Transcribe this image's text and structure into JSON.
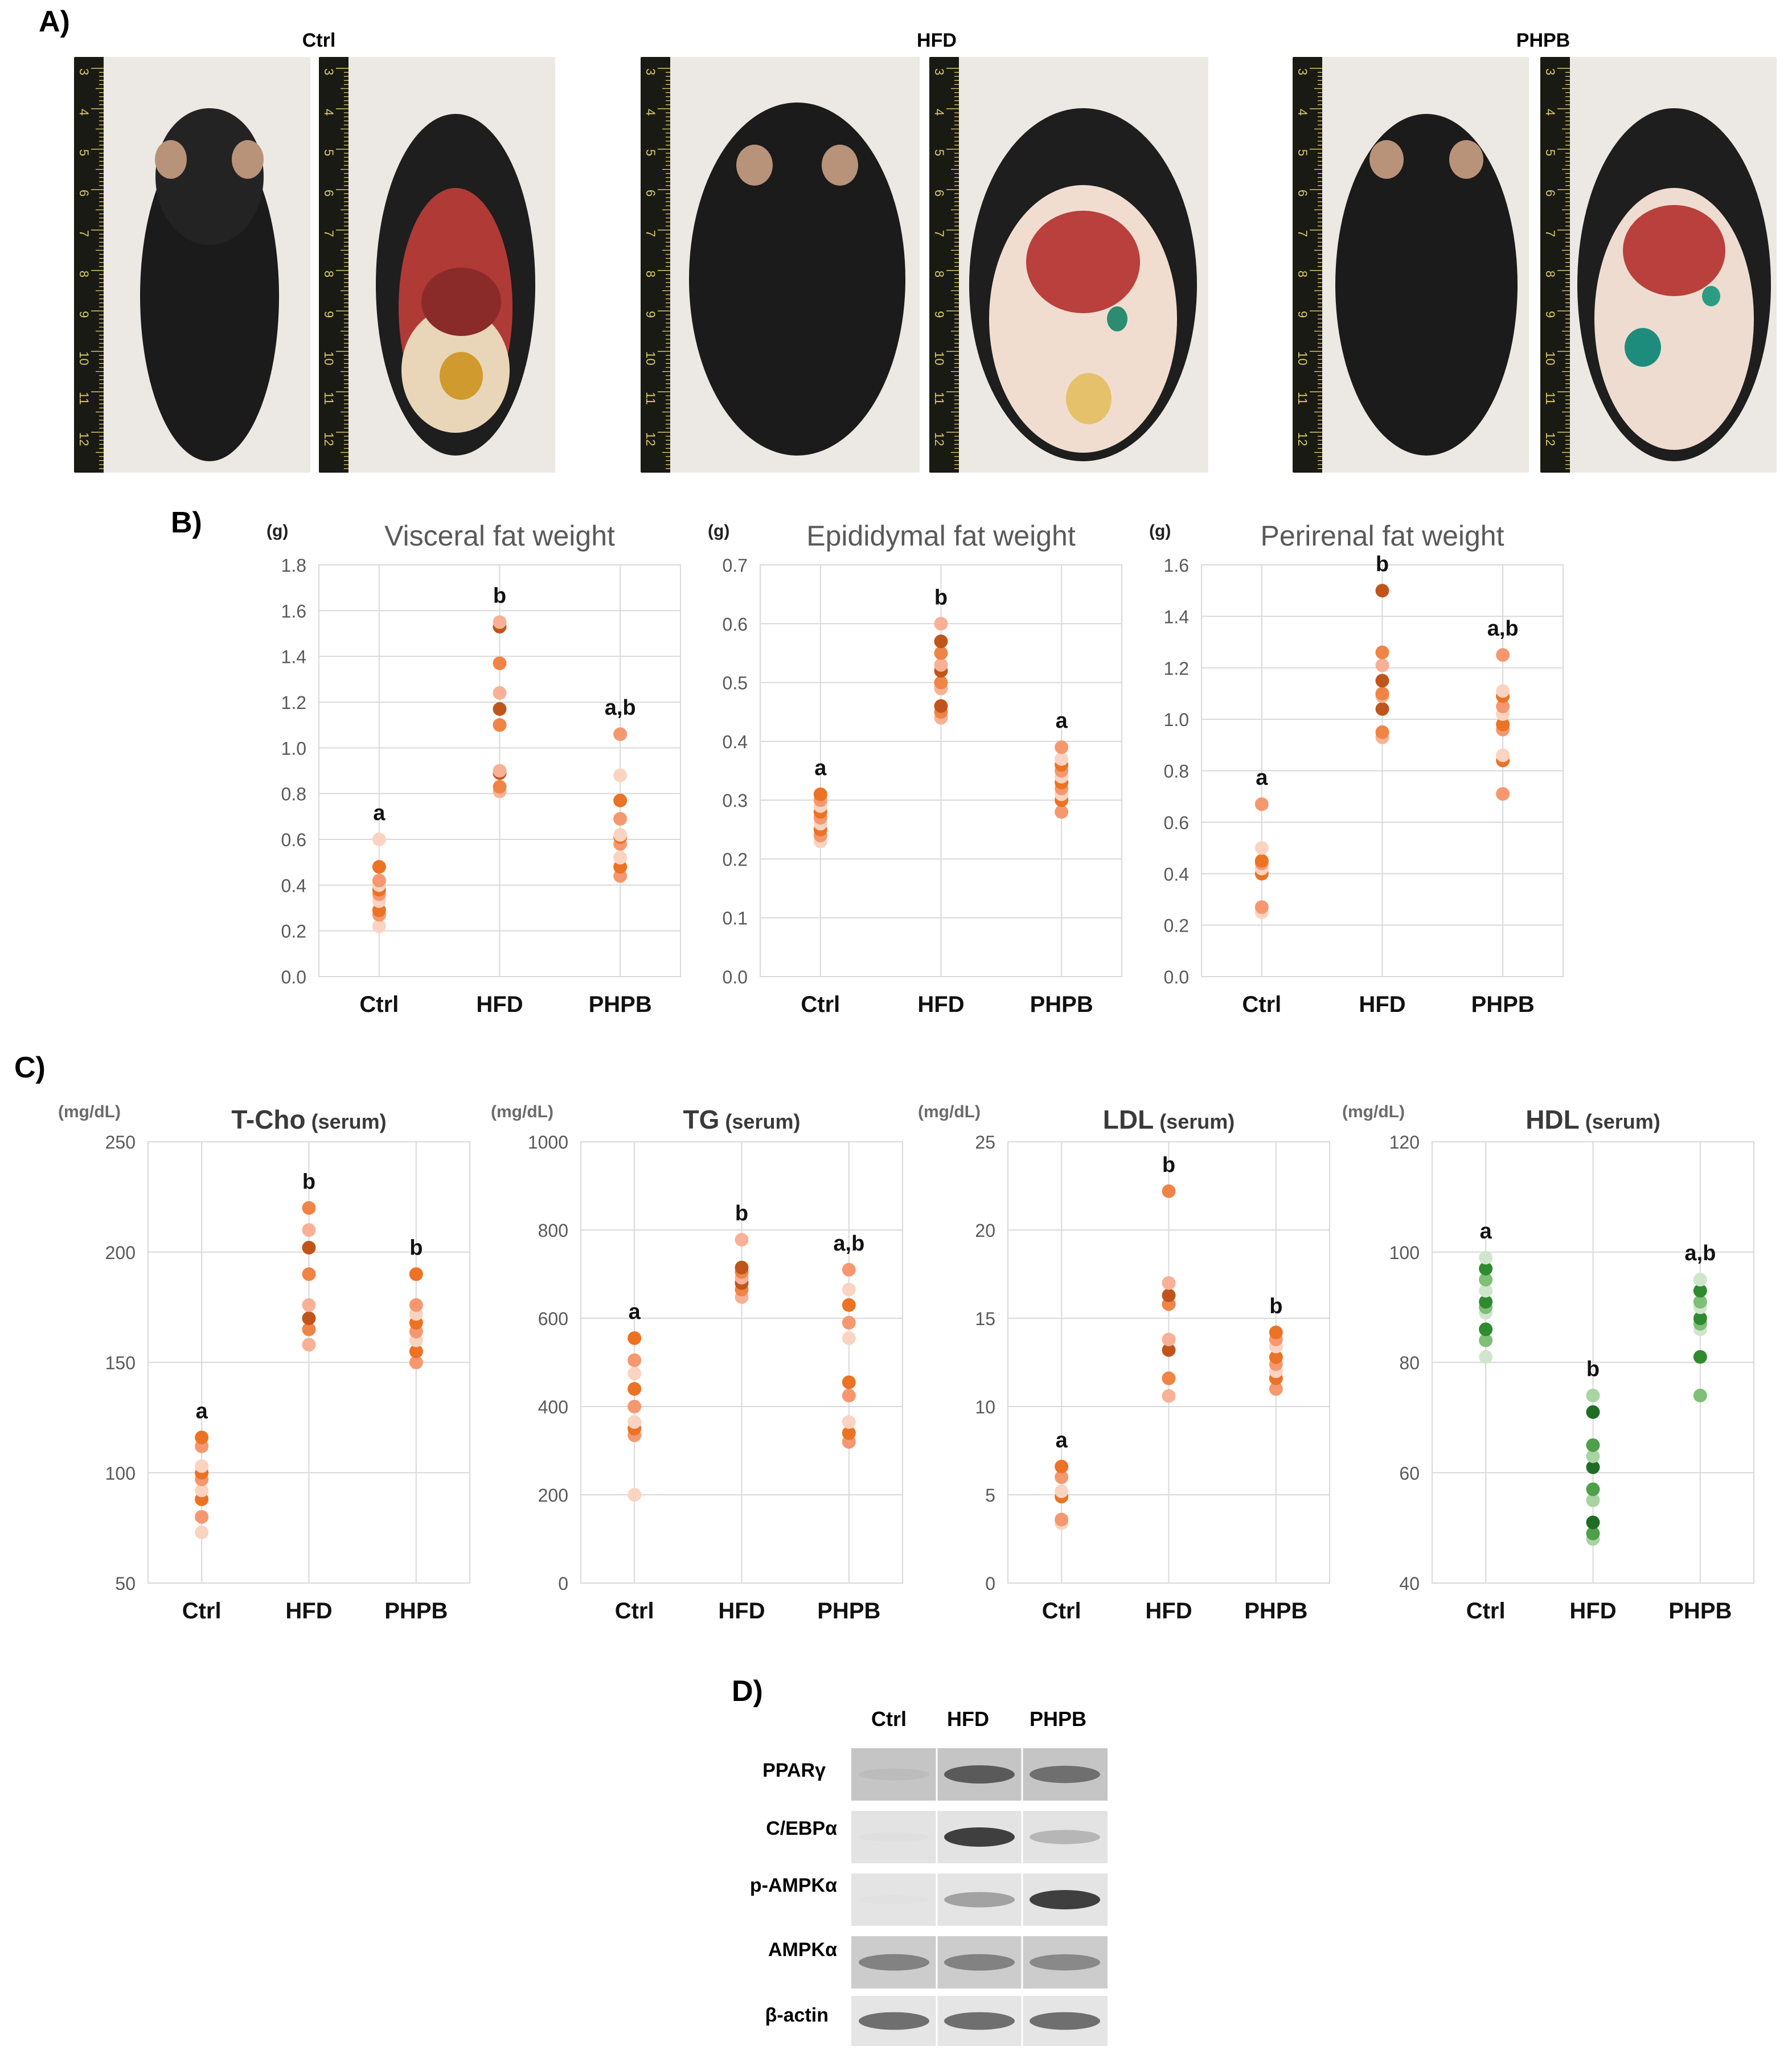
{
  "panelA": {
    "label": "A)",
    "groups": [
      {
        "title": "Ctrl"
      },
      {
        "title": "HFD"
      },
      {
        "title": "PHPB"
      }
    ],
    "ruler_numbers": [
      "3",
      "4",
      "5",
      "6",
      "7",
      "8",
      "9",
      "10",
      "11",
      "12"
    ]
  },
  "panelB": {
    "label": "B)",
    "categories": [
      "Ctrl",
      "HFD",
      "PHPB"
    ],
    "charts": [
      {
        "title": "Visceral fat weight",
        "unit": "(g)",
        "ylim": [
          0,
          1.8
        ],
        "step": 0.2,
        "decimals": 1,
        "letters": [
          "a",
          "b",
          "a,b"
        ],
        "series": [
          [
            0.22,
            0.27,
            0.29,
            0.33,
            0.36,
            0.38,
            0.4,
            0.42,
            0.48,
            0.6
          ],
          [
            0.81,
            0.83,
            0.89,
            0.9,
            1.1,
            1.17,
            1.24,
            1.37,
            1.53,
            1.55
          ],
          [
            0.44,
            0.48,
            0.52,
            0.58,
            0.61,
            0.62,
            0.69,
            0.77,
            0.88,
            1.06
          ]
        ]
      },
      {
        "title": "Epididymal fat weight",
        "unit": "(g)",
        "ylim": [
          0,
          0.7
        ],
        "step": 0.1,
        "decimals": 1,
        "letters": [
          "a",
          "b",
          "a"
        ],
        "series": [
          [
            0.23,
            0.24,
            0.25,
            0.26,
            0.27,
            0.28,
            0.29,
            0.3,
            0.31
          ],
          [
            0.44,
            0.45,
            0.46,
            0.49,
            0.5,
            0.52,
            0.53,
            0.55,
            0.57,
            0.6
          ],
          [
            0.28,
            0.3,
            0.31,
            0.32,
            0.33,
            0.34,
            0.35,
            0.36,
            0.37,
            0.39
          ]
        ]
      },
      {
        "title": "Perirenal fat weight",
        "unit": "(g)",
        "ylim": [
          0,
          1.6
        ],
        "step": 0.2,
        "decimals": 1,
        "letters": [
          "a",
          "b",
          "a,b"
        ],
        "series": [
          [
            0.25,
            0.27,
            0.4,
            0.42,
            0.44,
            0.45,
            0.5,
            0.67
          ],
          [
            0.93,
            0.95,
            1.04,
            1.09,
            1.1,
            1.15,
            1.21,
            1.26,
            1.5
          ],
          [
            0.71,
            0.84,
            0.86,
            0.96,
            0.98,
            1.02,
            1.05,
            1.09,
            1.11,
            1.25
          ]
        ]
      }
    ]
  },
  "panelC": {
    "label": "C)",
    "categories": [
      "Ctrl",
      "HFD",
      "PHPB"
    ],
    "charts": [
      {
        "title": "T-Cho",
        "subtitle": "(serum)",
        "unit": "(mg/dL)",
        "ylim": [
          50,
          250
        ],
        "step": 50,
        "decimals": 0,
        "letters": [
          "a",
          "b",
          "b"
        ],
        "palette": "orange",
        "series": [
          [
            73,
            80,
            88,
            92,
            97,
            100,
            103,
            112,
            116
          ],
          [
            158,
            165,
            170,
            176,
            190,
            202,
            210,
            220
          ],
          [
            150,
            155,
            160,
            164,
            168,
            172,
            176,
            190
          ]
        ]
      },
      {
        "title": "TG",
        "subtitle": "(serum)",
        "unit": "(mg/dL)",
        "ylim": [
          0,
          1000
        ],
        "step": 200,
        "decimals": 0,
        "letters": [
          "a",
          "b",
          "a,b"
        ],
        "palette": "orange",
        "series": [
          [
            200,
            335,
            350,
            365,
            400,
            440,
            475,
            505,
            555
          ],
          [
            648,
            665,
            680,
            692,
            705,
            715,
            778
          ],
          [
            320,
            340,
            365,
            425,
            455,
            555,
            590,
            630,
            665,
            710
          ]
        ]
      },
      {
        "title": "LDL",
        "subtitle": "(serum)",
        "unit": "(mg/dL)",
        "ylim": [
          0,
          25
        ],
        "step": 5,
        "decimals": 0,
        "letters": [
          "a",
          "b",
          "b"
        ],
        "palette": "orange",
        "series": [
          [
            3.4,
            3.6,
            4.9,
            5.2,
            6.0,
            6.6
          ],
          [
            10.6,
            11.6,
            13.2,
            13.8,
            15.8,
            16.3,
            17.0,
            22.2
          ],
          [
            11.0,
            11.6,
            12.0,
            12.4,
            12.8,
            13.4,
            13.8,
            14.2
          ]
        ]
      },
      {
        "title": "HDL",
        "subtitle": "(serum)",
        "unit": "(mg/dL)",
        "ylim": [
          40,
          120
        ],
        "step": 20,
        "decimals": 0,
        "letters": [
          "a",
          "b",
          "a,b"
        ],
        "palette": "green",
        "series": [
          [
            81,
            84,
            86,
            89,
            90,
            91,
            93,
            95,
            97,
            99
          ],
          [
            48,
            49,
            51,
            55,
            57,
            61,
            63,
            65,
            71,
            74
          ],
          [
            74,
            81,
            86,
            87,
            88,
            90,
            91,
            93,
            95
          ]
        ]
      }
    ]
  },
  "panelD": {
    "label": "D)",
    "headers": [
      "Ctrl",
      "HFD",
      "PHPB"
    ],
    "rows": [
      {
        "label": "PPARγ",
        "intensity": [
          0.25,
          0.8,
          0.72
        ],
        "background": 0.55
      },
      {
        "label": "C/EBPα",
        "intensity": [
          0.03,
          0.9,
          0.45
        ],
        "background": 0.12
      },
      {
        "label": "p-AMPKα",
        "intensity": [
          0.0,
          0.55,
          0.9
        ],
        "background": 0.1
      },
      {
        "label": "AMPKα",
        "intensity": [
          0.65,
          0.65,
          0.62
        ],
        "background": 0.45
      },
      {
        "label": "β-actin",
        "intensity": [
          0.75,
          0.75,
          0.75
        ],
        "background": 0.08
      }
    ]
  },
  "colors": {
    "orange": [
      "#fbd3c1",
      "#f8b196",
      "#f6986f",
      "#f08446",
      "#ec7224",
      "#c0551c"
    ],
    "green": [
      "#cfe6cc",
      "#a8d4a2",
      "#7fbf78",
      "#4ea04a",
      "#2f8a30",
      "#1f6d24"
    ],
    "grid": "#d9d9d9",
    "axis_text": "#595959"
  }
}
